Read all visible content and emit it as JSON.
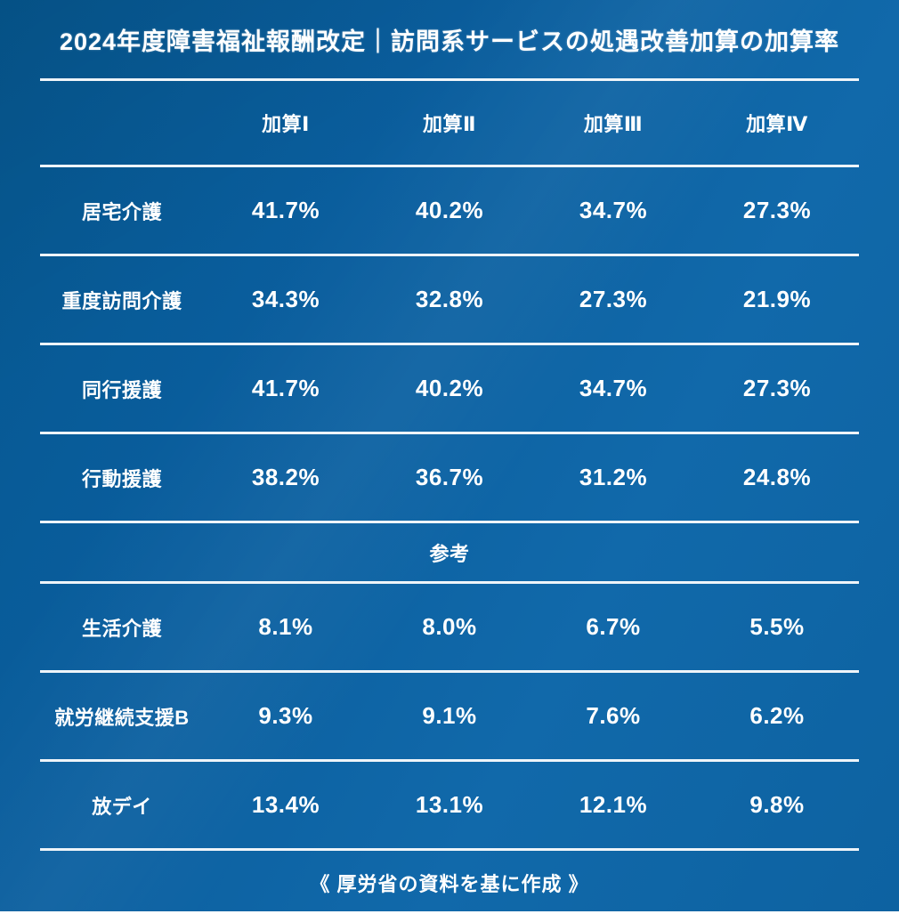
{
  "chart_data": {
    "type": "table",
    "title": "2024年度障害福祉報酬改定｜訪問系サービスの処遇改善加算の加算率",
    "column_headers": [
      "",
      "加算Ⅰ",
      "加算Ⅱ",
      "加算Ⅲ",
      "加算Ⅳ"
    ],
    "values_unit": "%",
    "sections": [
      {
        "name": "",
        "rows": [
          [
            "居宅介護",
            "41.7%",
            "40.2%",
            "34.7%",
            "27.3%"
          ],
          [
            "重度訪問介護",
            "34.3%",
            "32.8%",
            "27.3%",
            "21.9%"
          ],
          [
            "同行援護",
            "41.7%",
            "40.2%",
            "34.7%",
            "27.3%"
          ],
          [
            "行動援護",
            "38.2%",
            "36.7%",
            "31.2%",
            "24.8%"
          ]
        ]
      },
      {
        "name": "参考",
        "rows": [
          [
            "生活介護",
            "8.1%",
            "8.0%",
            "6.7%",
            "5.5%"
          ],
          [
            "就労継続支援B",
            "9.3%",
            "9.1%",
            "7.6%",
            "6.2%"
          ],
          [
            "放デイ",
            "13.4%",
            "13.1%",
            "12.1%",
            "9.8%"
          ]
        ]
      }
    ],
    "source_note": "《 厚労省の資料を基に作成 》"
  },
  "colors": {
    "background_dark": "#05578f",
    "background_light": "#1169aa",
    "divider_line": "#eef4f9",
    "text": "#ffffff"
  }
}
